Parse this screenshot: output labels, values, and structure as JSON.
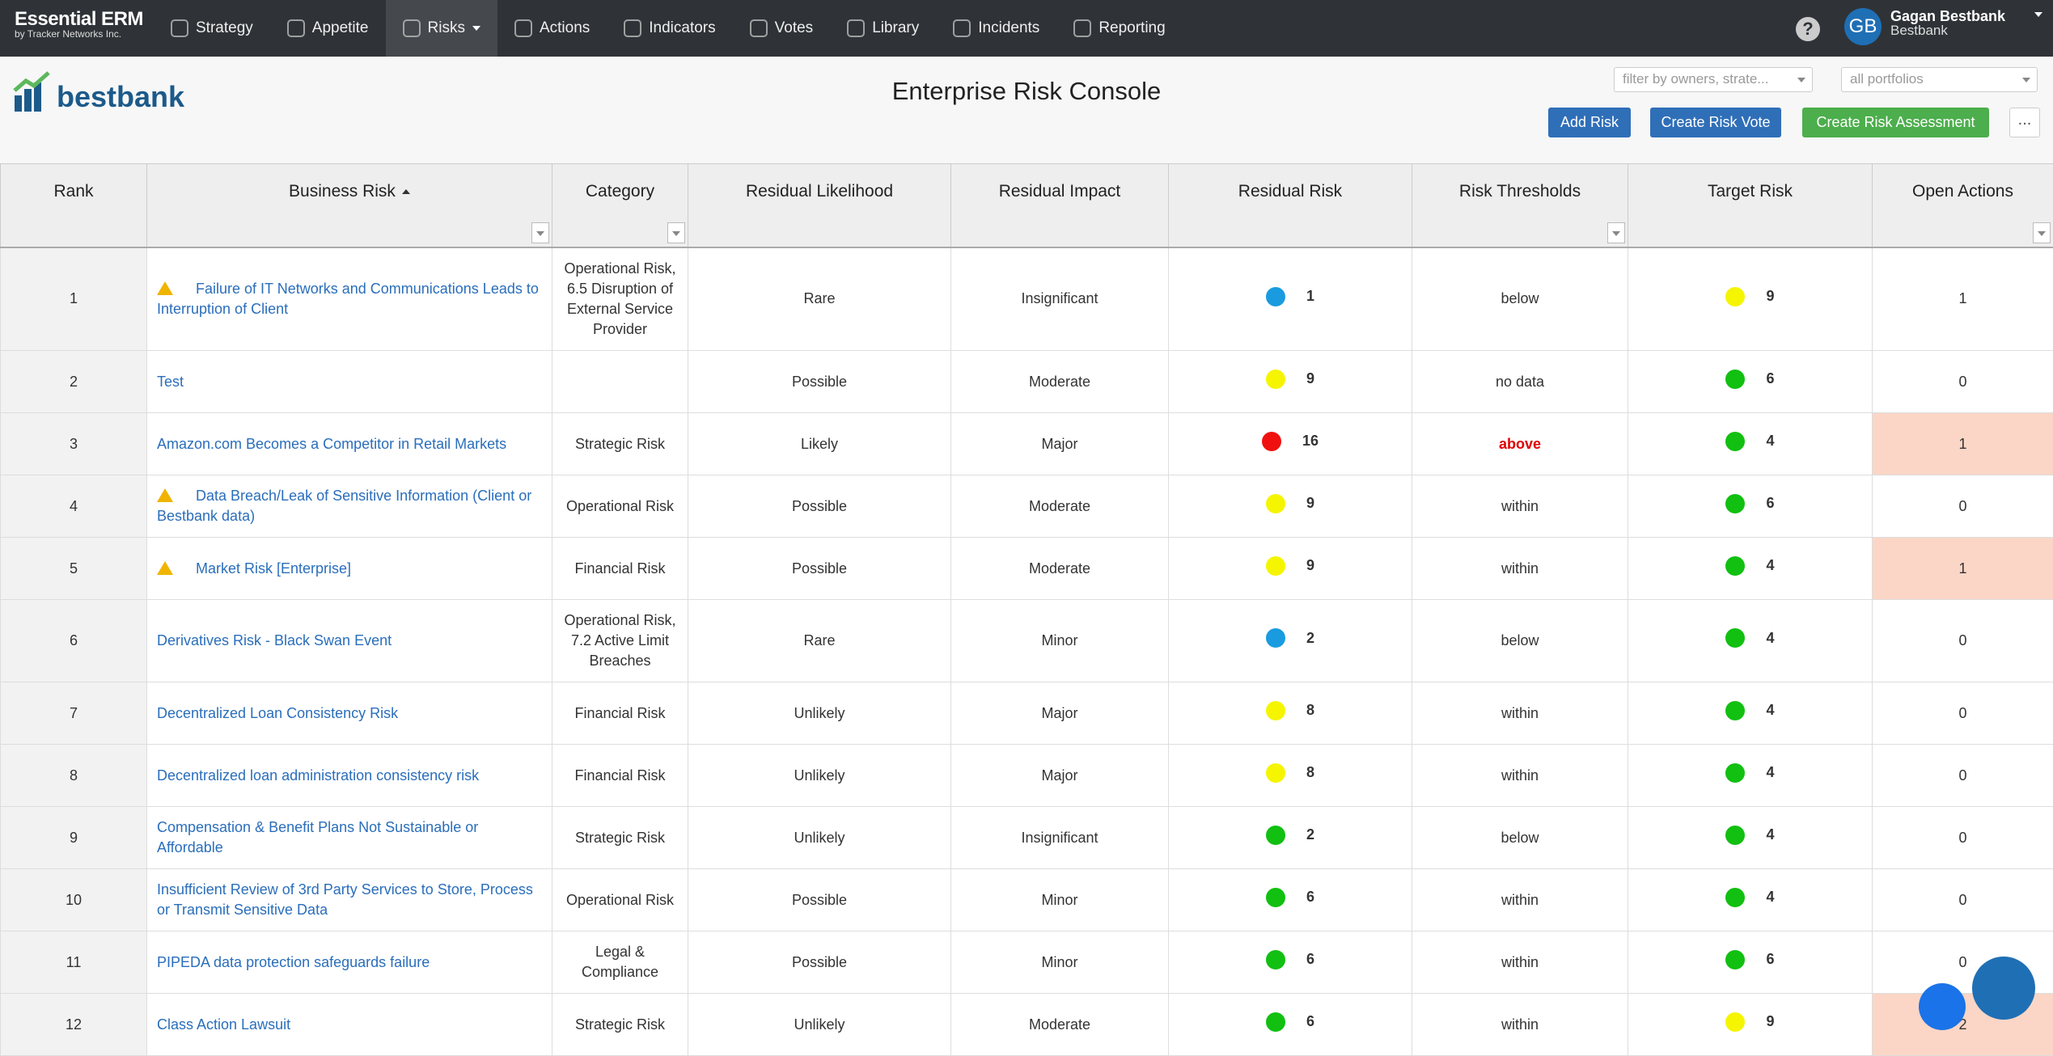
{
  "brand": {
    "name": "Essential ERM",
    "sub": "by Tracker Networks Inc."
  },
  "nav": [
    "Strategy",
    "Appetite",
    "Risks",
    "Actions",
    "Indicators",
    "Votes",
    "Library",
    "Incidents",
    "Reporting"
  ],
  "nav_active": 2,
  "user": {
    "initials": "GB",
    "name": "Gagan Bestbank",
    "org": "Bestbank"
  },
  "header": {
    "logo": "bestbank",
    "title": "Enterprise Risk Console",
    "filter_owners": "filter by owners, strate...",
    "filter_portfolios": "all portfolios",
    "buttons": [
      "Add Risk",
      "Create Risk Vote",
      "Create Risk Assessment"
    ],
    "more": "..."
  },
  "table": {
    "columns": [
      "Rank",
      "Business Risk",
      "Category",
      "Residual Likelihood",
      "Residual Impact",
      "Residual Risk",
      "Risk Thresholds",
      "Target Risk",
      "Open Actions"
    ],
    "rows": [
      {
        "rank": "1",
        "warning": true,
        "name": "Failure of IT Networks and Communications Leads to Interruption of Client",
        "category": "Operational Risk, 6.5 Disruption of External Service Provider",
        "likelihood": "Rare",
        "impact": "Insignificant",
        "residual_color": "#1a9be0",
        "residual": 1,
        "threshold": "below",
        "target_color": "#f5f500",
        "target": 9,
        "actions": 1,
        "highlight": false
      },
      {
        "rank": "2",
        "warning": false,
        "name": "Test",
        "category": null,
        "likelihood": "Possible",
        "impact": "Moderate",
        "residual_color": "#f5f500",
        "residual": 9,
        "threshold": "no data",
        "target_color": "#11c011",
        "target": 6,
        "actions": 0,
        "highlight": false
      },
      {
        "rank": "3",
        "warning": false,
        "name": "Amazon.com Becomes a Competitor in Retail Markets",
        "category": "Strategic Risk",
        "likelihood": "Likely",
        "impact": "Major",
        "residual_color": "#f01010",
        "residual": 16,
        "threshold": "above",
        "target_color": "#11c011",
        "target": 4,
        "actions": 1,
        "highlight": true
      },
      {
        "rank": "4",
        "warning": true,
        "name": "Data Breach/Leak of Sensitive Information (Client or Bestbank data)",
        "category": "Operational Risk",
        "likelihood": "Possible",
        "impact": "Moderate",
        "residual_color": "#f5f500",
        "residual": 9,
        "threshold": "within",
        "target_color": "#11c011",
        "target": 6,
        "actions": 0,
        "highlight": false
      },
      {
        "rank": "5",
        "warning": true,
        "name": "Market Risk [Enterprise]",
        "category": "Financial Risk",
        "likelihood": "Possible",
        "impact": "Moderate",
        "residual_color": "#f5f500",
        "residual": 9,
        "threshold": "within",
        "target_color": "#11c011",
        "target": 4,
        "actions": 1,
        "highlight": true
      },
      {
        "rank": "6",
        "warning": false,
        "name": "Derivatives Risk - Black Swan Event",
        "category": "Operational Risk, 7.2 Active Limit Breaches",
        "likelihood": "Rare",
        "impact": "Minor",
        "residual_color": "#1a9be0",
        "residual": 2,
        "threshold": "below",
        "target_color": "#11c011",
        "target": 4,
        "actions": 0,
        "highlight": false
      },
      {
        "rank": "7",
        "warning": false,
        "name": "Decentralized Loan Consistency Risk",
        "category": "Financial Risk",
        "likelihood": "Unlikely",
        "impact": "Major",
        "residual_color": "#f5f500",
        "residual": 8,
        "threshold": "within",
        "target_color": "#11c011",
        "target": 4,
        "actions": 0,
        "highlight": false
      },
      {
        "rank": "8",
        "warning": false,
        "name": "Decentralized loan administration consistency risk",
        "category": "Financial Risk",
        "likelihood": "Unlikely",
        "impact": "Major",
        "residual_color": "#f5f500",
        "residual": 8,
        "threshold": "within",
        "target_color": "#11c011",
        "target": 4,
        "actions": 0,
        "highlight": false
      },
      {
        "rank": "9",
        "warning": false,
        "name": "Compensation & Benefit Plans Not Sustainable or Affordable",
        "category": "Strategic Risk",
        "likelihood": "Unlikely",
        "impact": "Insignificant",
        "residual_color": "#11c011",
        "residual": 2,
        "threshold": "below",
        "target_color": "#11c011",
        "target": 4,
        "actions": 0,
        "highlight": false
      },
      {
        "rank": "10",
        "warning": false,
        "name": "Insufficient Review of 3rd Party Services to Store, Process or Transmit Sensitive Data",
        "category": "Operational Risk",
        "likelihood": "Possible",
        "impact": "Minor",
        "residual_color": "#11c011",
        "residual": 6,
        "threshold": "within",
        "target_color": "#11c011",
        "target": 4,
        "actions": 0,
        "highlight": false
      },
      {
        "rank": "11",
        "warning": false,
        "name": "PIPEDA data protection safeguards failure",
        "category": "Legal & Compliance",
        "likelihood": "Possible",
        "impact": "Minor",
        "residual_color": "#11c011",
        "residual": 6,
        "threshold": "within",
        "target_color": "#11c011",
        "target": 6,
        "actions": 0,
        "highlight": false
      },
      {
        "rank": "12",
        "warning": false,
        "name": "Class Action Lawsuit",
        "category": "Strategic Risk",
        "likelihood": "Unlikely",
        "impact": "Moderate",
        "residual_color": "#11c011",
        "residual": 6,
        "threshold": "within",
        "target_color": "#f5f500",
        "target": 9,
        "actions": 2,
        "highlight": true
      }
    ]
  }
}
